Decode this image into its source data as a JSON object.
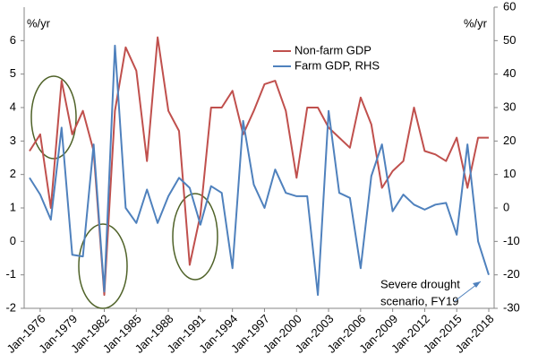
{
  "chart_data": {
    "type": "line",
    "categories": [
      null,
      "Jan-1976",
      null,
      null,
      "Jan-1979",
      null,
      null,
      "Jan-1982",
      null,
      null,
      "Jan-1985",
      null,
      null,
      "Jan-1988",
      null,
      null,
      "Jan-1991",
      null,
      null,
      "Jan-1994",
      null,
      null,
      "Jan-1997",
      null,
      null,
      "Jan-2000",
      null,
      null,
      "Jan-2003",
      null,
      null,
      "Jan-2006",
      null,
      null,
      "Jan-2009",
      null,
      null,
      "Jan-2012",
      null,
      null,
      "Jan-2015",
      null,
      null,
      "Jan-2018"
    ],
    "series": [
      {
        "name": "Non-farm GDP",
        "color": "#c0504d",
        "axis": "y",
        "values": [
          2.7,
          3.2,
          1.0,
          4.8,
          3.2,
          3.9,
          2.7,
          -1.6,
          3.9,
          5.8,
          5.1,
          2.4,
          6.1,
          3.9,
          3.3,
          -0.7,
          0.8,
          4.0,
          4.0,
          4.5,
          3.2,
          3.9,
          4.7,
          4.8,
          3.9,
          1.9,
          4.0,
          4.0,
          3.4,
          3.1,
          2.8,
          4.3,
          3.5,
          1.6,
          2.1,
          2.4,
          4.0,
          2.7,
          2.6,
          2.4,
          3.1,
          1.6,
          3.1,
          3.1
        ]
      },
      {
        "name": "Farm GDP, RHS",
        "color": "#4f81bd",
        "axis": "y2",
        "values": [
          9,
          4,
          -3.5,
          24,
          -14,
          -14.5,
          19,
          -25,
          48.5,
          0,
          -4.5,
          5.5,
          -4.5,
          3.5,
          9,
          6,
          -5,
          6.5,
          4.5,
          -18,
          26,
          7,
          0,
          11.5,
          4.5,
          3.5,
          3.5,
          -26,
          29,
          4.5,
          3,
          -18,
          9.5,
          19,
          -1,
          4,
          1,
          -0.5,
          1,
          1.5,
          -8,
          19,
          -10,
          -20
        ]
      }
    ],
    "y_label": "%/yr",
    "y2_label": "%/yr",
    "ylim": [
      -2,
      7
    ],
    "yticks": [
      -2,
      -1,
      0,
      1,
      2,
      3,
      4,
      5,
      6
    ],
    "y2lim": [
      -30,
      60
    ],
    "y2ticks": [
      -30,
      -20,
      -10,
      0,
      10,
      20,
      30,
      40,
      50,
      60
    ],
    "annotation": [
      "Severe drought",
      "scenario, FY19"
    ],
    "legend": "upper center",
    "grid": false
  }
}
